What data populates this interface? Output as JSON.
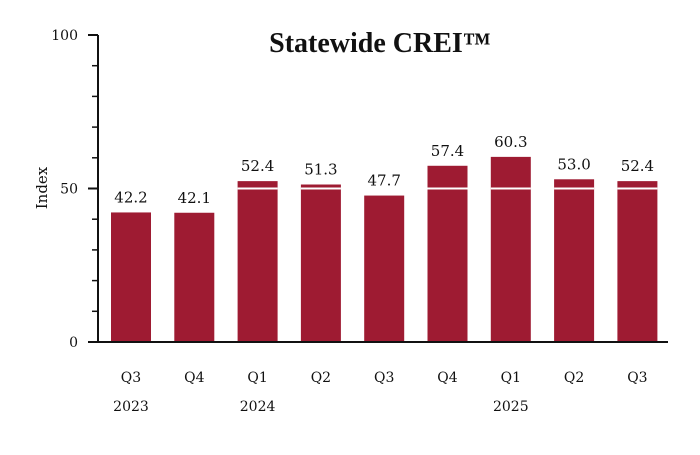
{
  "chart_data": {
    "type": "bar",
    "title": "Statewide CREI™",
    "xlabel": "",
    "ylabel": "Index",
    "ylim": [
      0,
      100
    ],
    "yticks": [
      0,
      50,
      100
    ],
    "grid": false,
    "bar_color": "#9e1b32",
    "reference_line": {
      "value": 50,
      "color": "#ffffff"
    },
    "categories": [
      "Q3",
      "Q4",
      "Q1",
      "Q2",
      "Q3",
      "Q4",
      "Q1",
      "Q2",
      "Q3"
    ],
    "years": [
      {
        "label": "2023",
        "category_index": 0
      },
      {
        "label": "2024",
        "category_index": 2
      },
      {
        "label": "2025",
        "category_index": 6
      }
    ],
    "values": [
      42.2,
      42.1,
      52.4,
      51.3,
      47.7,
      57.4,
      60.3,
      53.0,
      52.4
    ],
    "value_labels": [
      "42.2",
      "42.1",
      "52.4",
      "51.3",
      "47.7",
      "57.4",
      "60.3",
      "53.0",
      "52.4"
    ]
  }
}
